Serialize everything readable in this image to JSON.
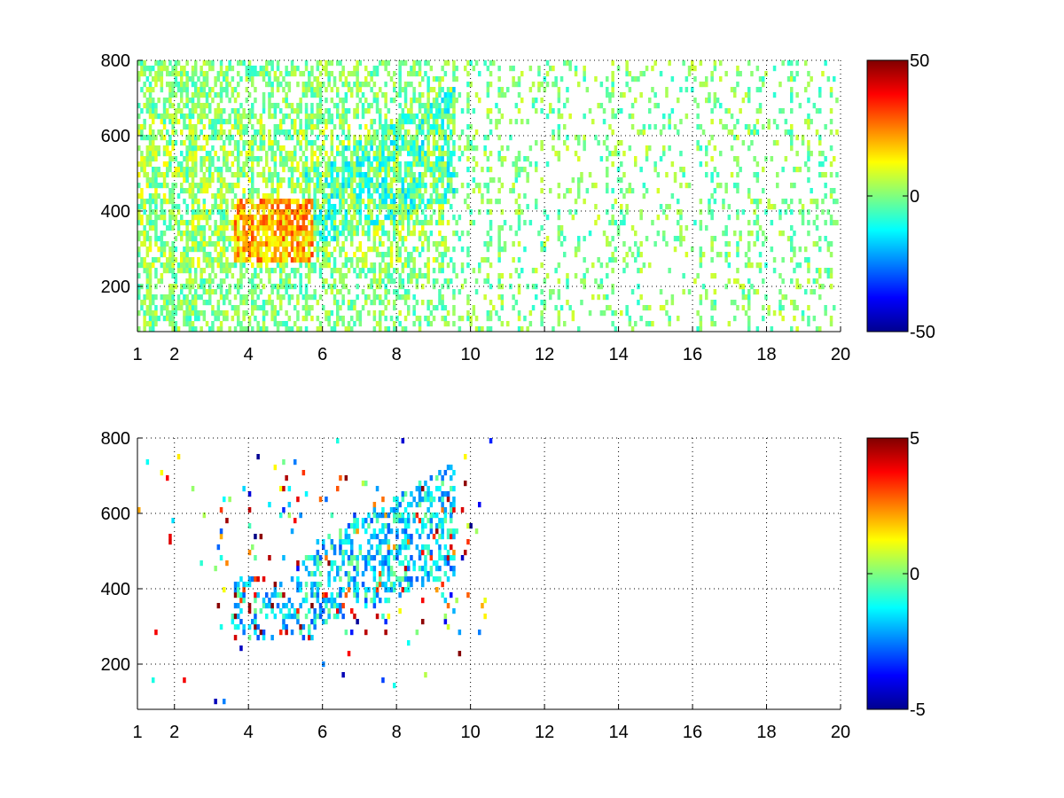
{
  "chart_data": [
    {
      "type": "heatmap",
      "title": "",
      "xlabel": "",
      "ylabel": "",
      "xlim": [
        1,
        20
      ],
      "ylim": [
        80,
        800
      ],
      "xticks": [
        1,
        2,
        4,
        6,
        8,
        10,
        12,
        14,
        16,
        18,
        20
      ],
      "yticks": [
        200,
        400,
        600,
        800
      ],
      "grid": true,
      "colormap": "jet",
      "colorbar": {
        "limits": [
          -50,
          50
        ],
        "ticks": [
          -50,
          0,
          50
        ]
      },
      "regions": [
        {
          "description": "dense band",
          "x": [
            4,
            5.5
          ],
          "y": [
            280,
            420
          ],
          "value_range": [
            5,
            35
          ]
        },
        {
          "description": "rising structure",
          "x": [
            6,
            9.5
          ],
          "y": [
            380,
            600
          ],
          "value_range": [
            -20,
            10
          ]
        },
        {
          "description": "sparse scatter",
          "x": [
            1,
            20
          ],
          "y": [
            80,
            800
          ],
          "value_range": [
            -10,
            10
          ]
        }
      ]
    },
    {
      "type": "heatmap",
      "title": "",
      "xlabel": "",
      "ylabel": "",
      "xlim": [
        1,
        20
      ],
      "ylim": [
        80,
        800
      ],
      "xticks": [
        1,
        2,
        4,
        6,
        8,
        10,
        12,
        14,
        16,
        18,
        20
      ],
      "yticks": [
        200,
        400,
        600,
        800
      ],
      "grid": true,
      "colormap": "jet",
      "colorbar": {
        "limits": [
          -5,
          5
        ],
        "ticks": [
          -5,
          0,
          5
        ]
      },
      "regions": [
        {
          "description": "dense band",
          "x": [
            4,
            6
          ],
          "y": [
            290,
            400
          ],
          "value_range": [
            -3,
            0
          ]
        },
        {
          "description": "rising structure",
          "x": [
            6,
            9.2
          ],
          "y": [
            360,
            600
          ],
          "value_range": [
            -3,
            0
          ]
        },
        {
          "description": "sparse scatter",
          "x": [
            1,
            10.5
          ],
          "y": [
            80,
            780
          ],
          "value_range": [
            -5,
            5
          ]
        }
      ]
    }
  ]
}
